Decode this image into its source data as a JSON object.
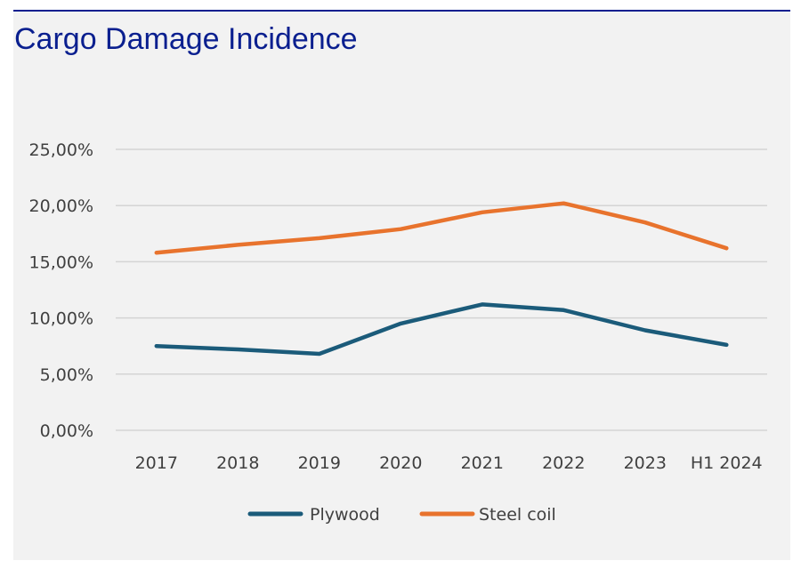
{
  "title": "Cargo Damage Incidence",
  "chart_data": {
    "type": "line",
    "title": "Cargo Damage Incidence",
    "categories": [
      "2017",
      "2018",
      "2019",
      "2020",
      "2021",
      "2022",
      "2023",
      "H1 2024"
    ],
    "yticks": [
      "0,00%",
      "5,00%",
      "10,00%",
      "15,00%",
      "20,00%",
      "25,00%"
    ],
    "ylim": [
      0,
      25
    ],
    "grid": true,
    "legend_position": "bottom",
    "series": [
      {
        "name": "Plywood",
        "color": "#1b5b7a",
        "values": [
          7.5,
          7.2,
          6.8,
          9.5,
          11.2,
          10.7,
          8.9,
          7.6
        ]
      },
      {
        "name": "Steel coil",
        "color": "#e8732d",
        "values": [
          15.8,
          16.5,
          17.1,
          17.9,
          19.4,
          20.2,
          18.5,
          16.2
        ]
      }
    ]
  }
}
